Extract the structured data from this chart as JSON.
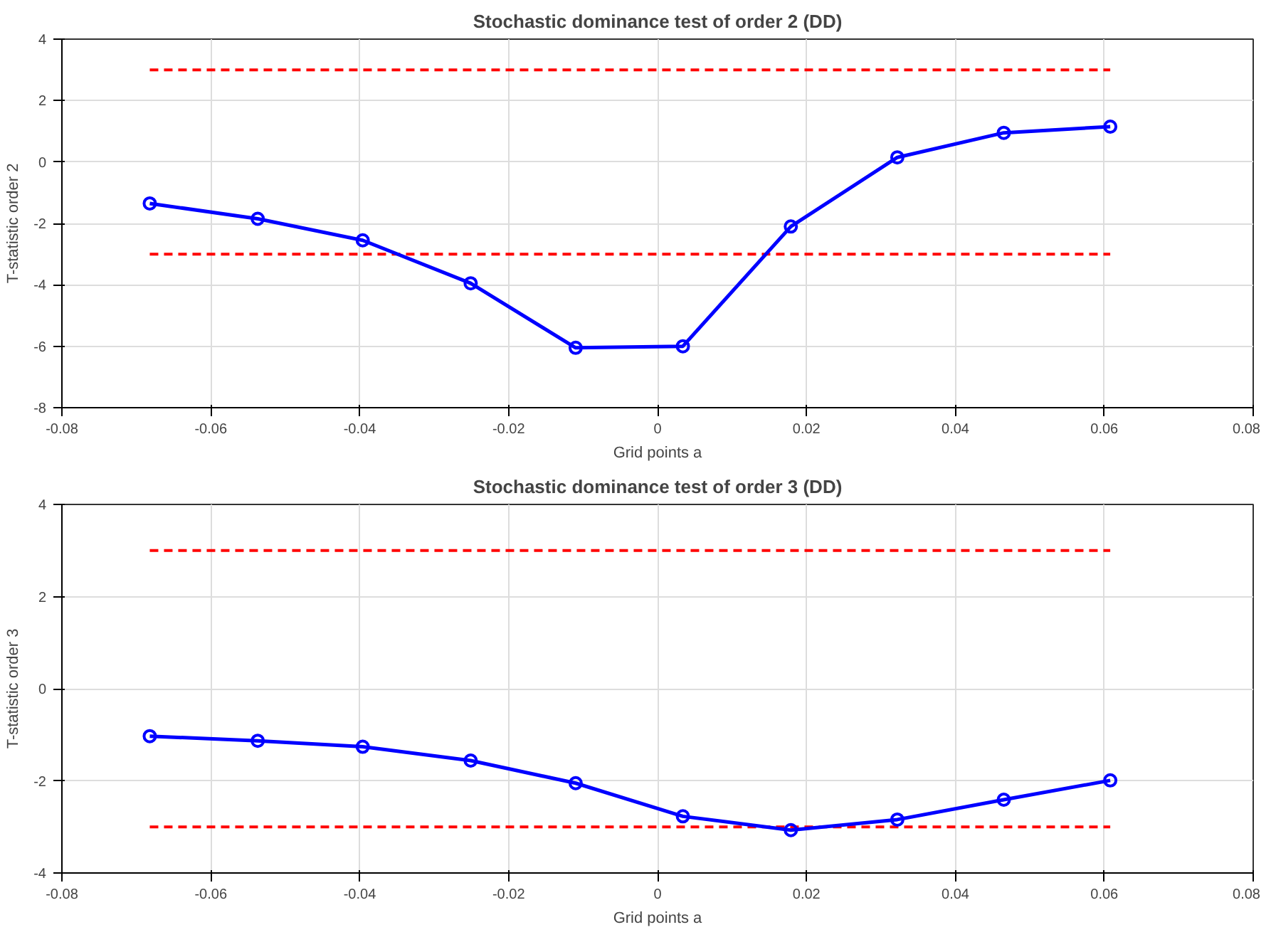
{
  "chart_data": [
    {
      "type": "line",
      "title": "Stochastic dominance test of order 2 (DD)",
      "xlabel": "Grid points a",
      "ylabel": "T-statistic order 2",
      "xlim": [
        -0.08,
        0.08
      ],
      "xticks": [
        -0.08,
        -0.06,
        -0.04,
        -0.02,
        0,
        0.02,
        0.04,
        0.06,
        0.08
      ],
      "ylim": [
        -8,
        4
      ],
      "yticks": [
        -8,
        -6,
        -4,
        -2,
        0,
        2,
        4
      ],
      "grid": true,
      "marker": "circle",
      "line_style": "solid",
      "x": [
        -0.0682,
        -0.0537,
        -0.0396,
        -0.0251,
        -0.011,
        0.0034,
        0.0179,
        0.0322,
        0.0465,
        0.0608
      ],
      "series": [
        {
          "color": "#0000ff",
          "values": [
            -1.35,
            -1.85,
            -2.55,
            -3.95,
            -6.05,
            -6.0,
            -2.1,
            0.15,
            0.95,
            1.15
          ]
        }
      ],
      "ref_lines": [
        {
          "axis": "y",
          "value": 3,
          "color": "#ff0000",
          "line_style": "dashed"
        },
        {
          "axis": "y",
          "value": -3,
          "color": "#ff0000",
          "line_style": "dashed"
        }
      ]
    },
    {
      "type": "line",
      "title": "Stochastic dominance test of order 3 (DD)",
      "xlabel": "Grid points a",
      "ylabel": "T-statistic order 3",
      "xlim": [
        -0.08,
        0.08
      ],
      "xticks": [
        -0.08,
        -0.06,
        -0.04,
        -0.02,
        0,
        0.02,
        0.04,
        0.06,
        0.08
      ],
      "ylim": [
        -4,
        4
      ],
      "yticks": [
        -4,
        -2,
        0,
        2,
        4
      ],
      "grid": true,
      "marker": "circle",
      "line_style": "solid",
      "x": [
        -0.0682,
        -0.0537,
        -0.0396,
        -0.0251,
        -0.011,
        0.0034,
        0.0179,
        0.0322,
        0.0465,
        0.0608
      ],
      "series": [
        {
          "color": "#0000ff",
          "values": [
            -1.03,
            -1.13,
            -1.26,
            -1.56,
            -2.05,
            -2.77,
            -3.07,
            -2.84,
            -2.41,
            -1.99
          ]
        }
      ],
      "ref_lines": [
        {
          "axis": "y",
          "value": 3,
          "color": "#ff0000",
          "line_style": "dashed"
        },
        {
          "axis": "y",
          "value": -3,
          "color": "#ff0000",
          "line_style": "dashed"
        }
      ]
    }
  ]
}
